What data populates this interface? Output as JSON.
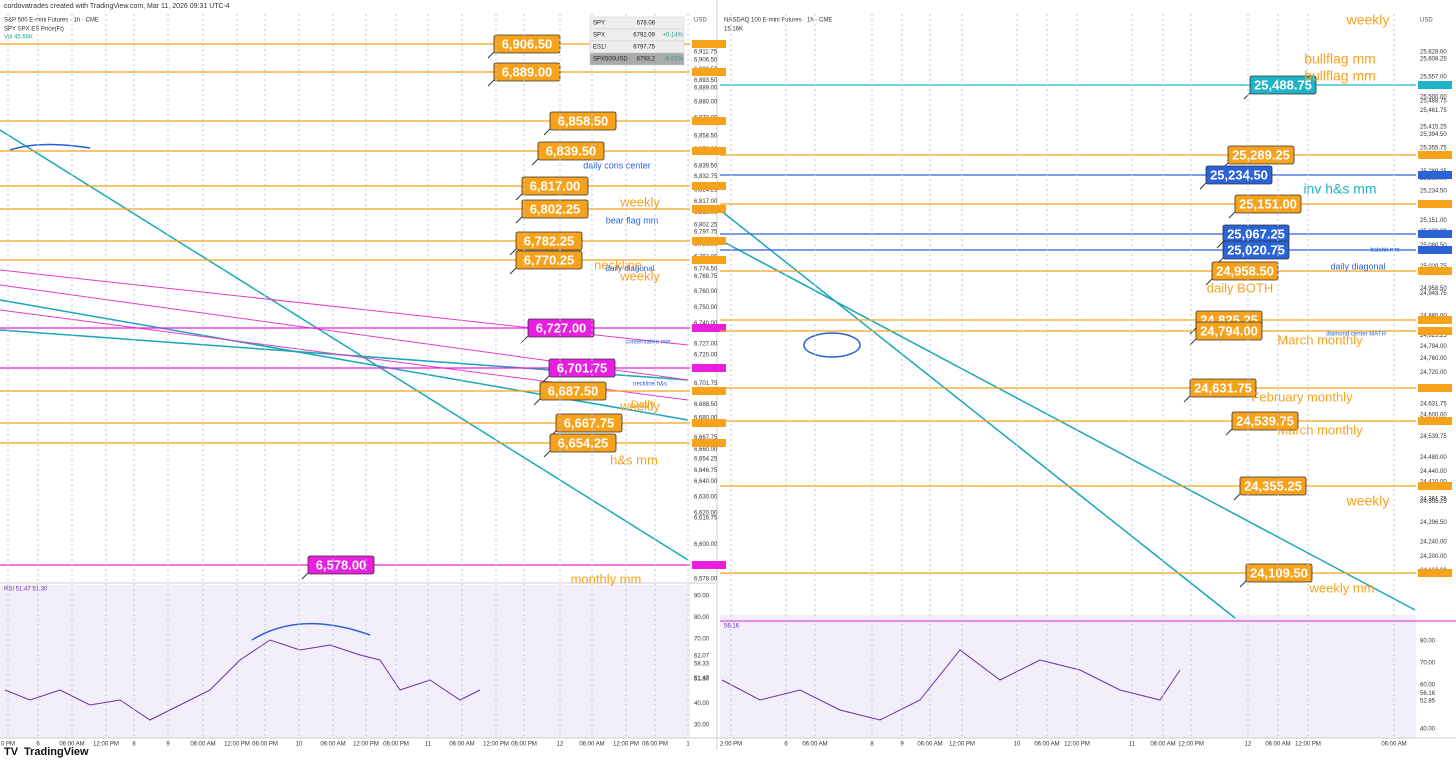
{
  "header": {
    "credit": "cordovatrades created with TradingView.com, Mar 11, 2026 09:31 UTC-4"
  },
  "left": {
    "title": "S&P 500 E-mini Futures · 1h · CME",
    "legend": [
      "SPY SPX ES Price(Ft)",
      "Vol 45.66K"
    ],
    "currency": "USD",
    "quotes": [
      [
        "SPY",
        "678.08",
        ""
      ],
      [
        "SPX",
        "6792.09",
        "+0.14%"
      ],
      [
        "ES1!",
        "6797.75",
        ""
      ],
      [
        "SPX500USD",
        "6793.2",
        "-0.01%"
      ]
    ],
    "callouts": [
      "6,906.50",
      "6,889.00",
      "6,858.50",
      "6,839.50",
      "6,817.00",
      "6,802.25",
      "6,782.25",
      "6,770.25",
      "6,727.00",
      "6,701.75",
      "6,687.50",
      "6,667.75",
      "6,654.25",
      "6,578.00"
    ],
    "notes": [
      "daily cons center",
      "weekly",
      "bear flag mm",
      "neckline",
      "daily diagonal",
      "weekly",
      "conservative mm",
      "neckline h&s",
      "Daily",
      "weekly",
      "h&s mm",
      "monthly mm"
    ],
    "axis": [
      "6,915.50",
      "6,911.75",
      "6,906.50",
      "6,900.50",
      "6,893.50",
      "6,889.00",
      "6,880.00",
      "6,870.00",
      "6,858.50",
      "6,850.00",
      "6,839.50",
      "6,832.75",
      "6,824.25",
      "6,817.00",
      "6,810.00",
      "6,802.25",
      "6,797.75",
      "6,790.00",
      "6,782.00",
      "6,774.50",
      "6,769.75",
      "6,760.00",
      "6,750.00",
      "6,740.00",
      "6,727.00",
      "6,720.00",
      "6,710.00",
      "6,701.75",
      "6,688.50",
      "6,680.00",
      "6,667.75",
      "6,660.00",
      "6,654.25",
      "6,646.75",
      "6,640.00",
      "6,630.00",
      "6,620.00",
      "6,616.75",
      "6,600.00",
      "6,578.00"
    ],
    "rsi_title": "RSI 51.47 51.30",
    "rsi_axis": [
      "90.00",
      "80.00",
      "70.00",
      "62.07",
      "58.33",
      "51.47",
      "51.30",
      "40.00",
      "30.00"
    ],
    "times": [
      "0 PM",
      "6",
      "06:00 AM",
      "12:00 PM",
      "8",
      "9",
      "06:00 AM",
      "12:00 PM",
      "06:00 PM",
      "10",
      "06:00 AM",
      "12:00 PM",
      "06:00 PM",
      "11",
      "06:00 AM",
      "12:00 PM",
      "06:00 PM",
      "12",
      "06:00 AM",
      "12:00 PM",
      "06:00 PM",
      "1"
    ]
  },
  "right": {
    "title": "NASDAQ 100 E-mini Futures · 1h · CME",
    "legend": [
      "15.16K"
    ],
    "currency": "USD",
    "callouts": [
      "25,488.75",
      "25,289.25",
      "25,234.50",
      "25,151.00",
      "25,067.25",
      "25,020.75",
      "24,958.50",
      "24,825.25",
      "24,794.00",
      "24,631.75",
      "24,539.75",
      "24,355.25",
      "24,109.50"
    ],
    "notes": [
      "weekly",
      "bullflag mm",
      "bullflag mm",
      "inv h&s mm",
      "batshit mm",
      "daily diagonal",
      "daily BOTH",
      "diamond center MATH",
      "March monthly",
      "February monthly",
      "March monthly",
      "weekly",
      "weekly mm"
    ],
    "axis": [
      "25,628.00",
      "25,608.25",
      "25,557.00",
      "25,500.00",
      "25,488.75",
      "25,461.75",
      "25,415.25",
      "25,394.50",
      "25,355.75",
      "25,289.25",
      "25,269.00",
      "25,234.50",
      "25,200.00",
      "25,151.00",
      "25,120.00",
      "25,080.50",
      "25,067.25",
      "25,020.75",
      "24,958.50",
      "24,943.75",
      "24,880.00",
      "24,825.25",
      "24,794.00",
      "24,760.00",
      "24,720.00",
      "24,680.00",
      "24,631.75",
      "24,600.00",
      "24,539.75",
      "24,480.00",
      "24,440.00",
      "24,410.00",
      "24,361.75",
      "24,355.25",
      "24,296.50",
      "24,240.00",
      "24,200.00",
      "24,160.00",
      "24,109.50",
      "24,080.00",
      "24,040.00"
    ],
    "rsi_title": "56.16",
    "rsi_axis": [
      "80.00",
      "70.00",
      "60.00",
      "56.16",
      "52.85",
      "40.00"
    ],
    "times": [
      "2:00 PM",
      "6",
      "06:00 AM",
      "8",
      "9",
      "06:00 AM",
      "12:00 PM",
      "10",
      "06:00 AM",
      "12:00 PM",
      "11",
      "06:00 AM",
      "12:00 PM",
      "12",
      "06:00 AM",
      "12:00 PM",
      "06:00 AM"
    ]
  },
  "footer": {
    "brand": "TradingView"
  }
}
